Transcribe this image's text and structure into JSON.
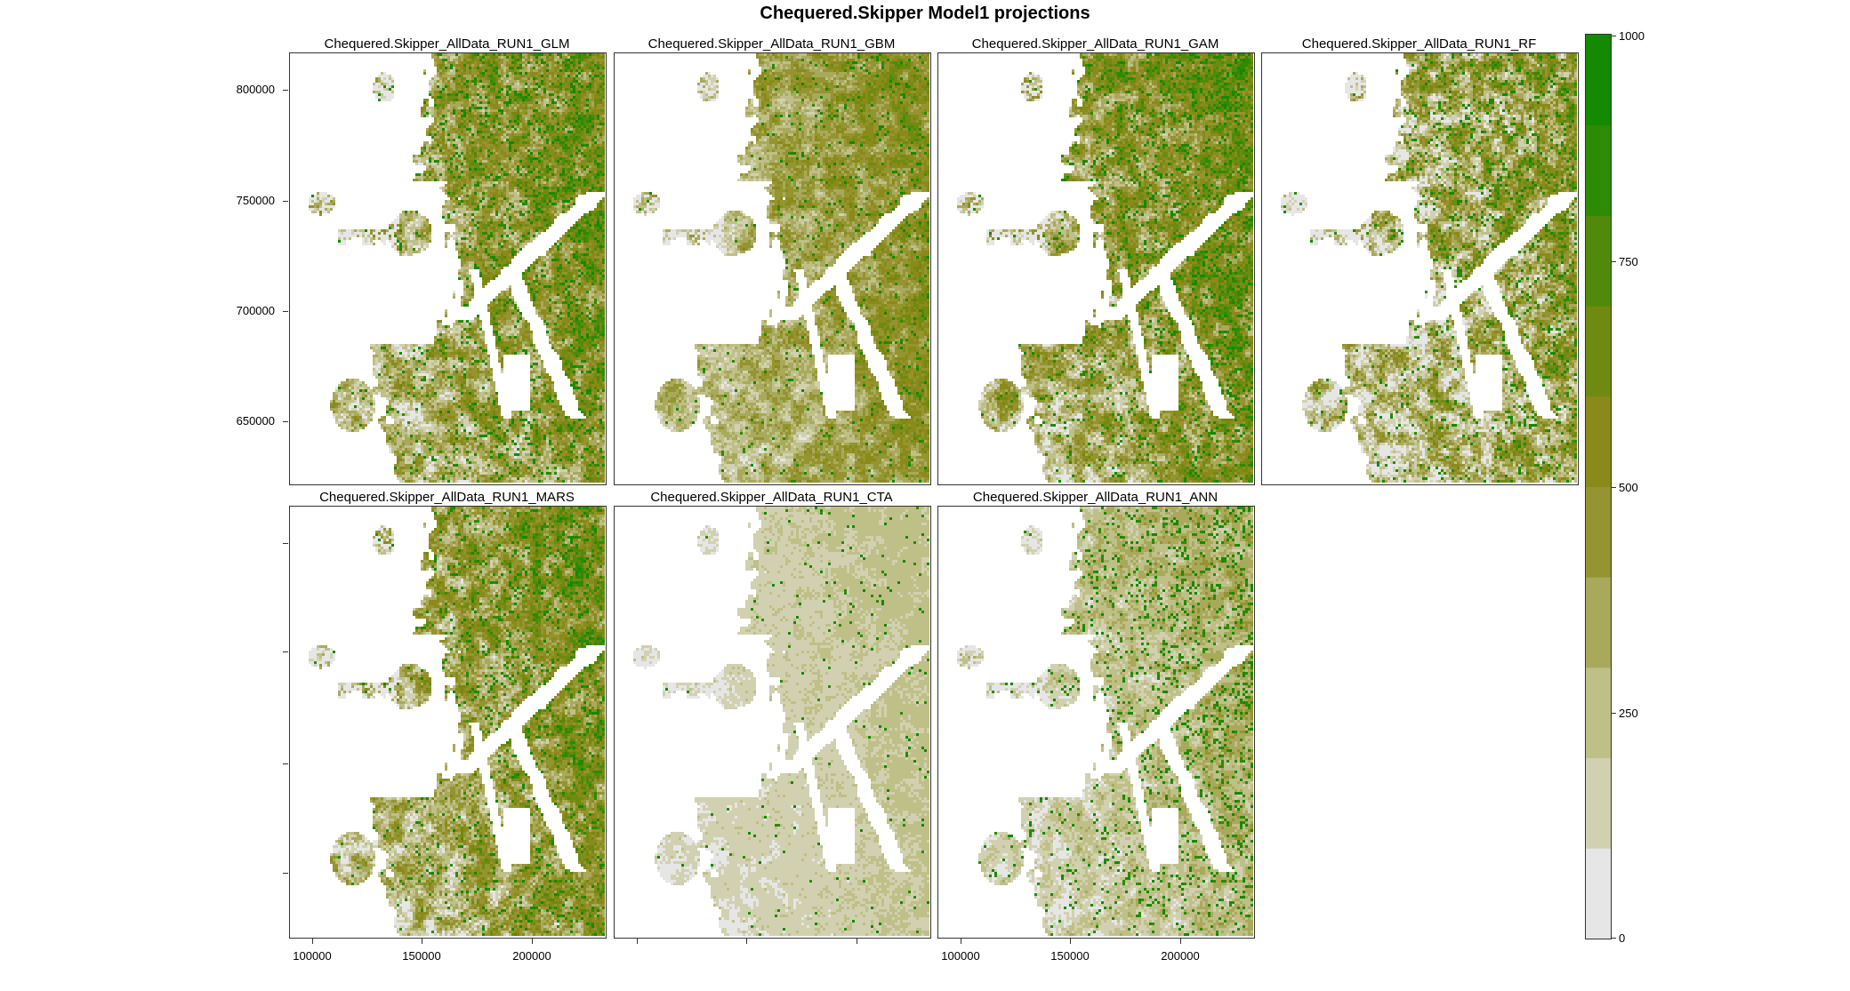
{
  "title": "Chequered.Skipper Model1 projections",
  "panels": [
    {
      "id": "glm",
      "title": "Chequered.Skipper_AllData_RUN1_GLM"
    },
    {
      "id": "gbm",
      "title": "Chequered.Skipper_AllData_RUN1_GBM"
    },
    {
      "id": "gam",
      "title": "Chequered.Skipper_AllData_RUN1_GAM"
    },
    {
      "id": "rf",
      "title": "Chequered.Skipper_AllData_RUN1_RF"
    },
    {
      "id": "mars",
      "title": "Chequered.Skipper_AllData_RUN1_MARS"
    },
    {
      "id": "cta",
      "title": "Chequered.Skipper_AllData_RUN1_CTA"
    },
    {
      "id": "ann",
      "title": "Chequered.Skipper_AllData_RUN1_ANN"
    }
  ],
  "y_axis": {
    "ticks": [
      "800000",
      "750000",
      "700000",
      "650000"
    ]
  },
  "x_axis": {
    "ticks": [
      "100000",
      "150000",
      "200000"
    ]
  },
  "color_key": {
    "range": [
      0,
      1000
    ],
    "ticks": [
      "1000",
      "750",
      "500",
      "250",
      "0"
    ],
    "colors": [
      "#e6e6e6",
      "#d1d1b1",
      "#bfbf88",
      "#a9a95c",
      "#949430",
      "#8a8a1a",
      "#6f8a10",
      "#4f8a0a",
      "#2d8a05",
      "#138a00"
    ]
  },
  "chart_data": {
    "type": "heatmap",
    "title": "Chequered.Skipper Model1 projections",
    "x_range": [
      90000,
      235000
    ],
    "y_range": [
      620000,
      818000
    ],
    "value_range": [
      0,
      1000
    ],
    "legend_placement": "right"
  }
}
